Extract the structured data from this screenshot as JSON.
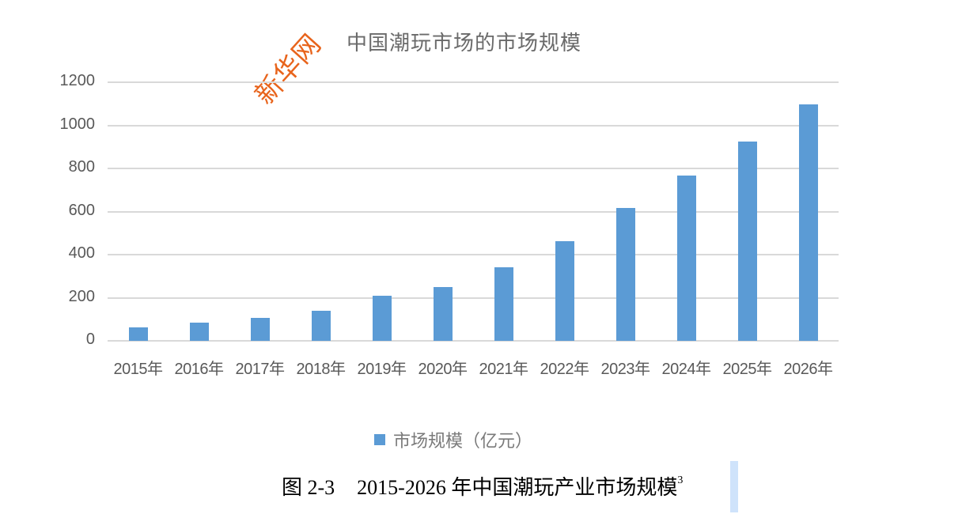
{
  "watermark": "新华网",
  "figure_caption": {
    "label": "图 2-3",
    "text": "2015-2026 年中国潮玩产业市场规模",
    "footnote": "3"
  },
  "chart_data": {
    "type": "bar",
    "title": "中国潮玩市场的市场规模",
    "xlabel": "",
    "ylabel": "",
    "ylim": [
      0,
      1200
    ],
    "yticks": [
      0,
      200,
      400,
      600,
      800,
      1000,
      1200
    ],
    "grid": true,
    "legend_position": "bottom",
    "categories": [
      "2015年",
      "2016年",
      "2017年",
      "2018年",
      "2019年",
      "2020年",
      "2021年",
      "2022年",
      "2023年",
      "2024年",
      "2025年",
      "2026年"
    ],
    "series": [
      {
        "name": "市场规模（亿元）",
        "color": "#5b9bd5",
        "values": [
          63,
          83,
          108,
          140,
          210,
          250,
          343,
          463,
          616,
          766,
          926,
          1096
        ]
      }
    ]
  }
}
